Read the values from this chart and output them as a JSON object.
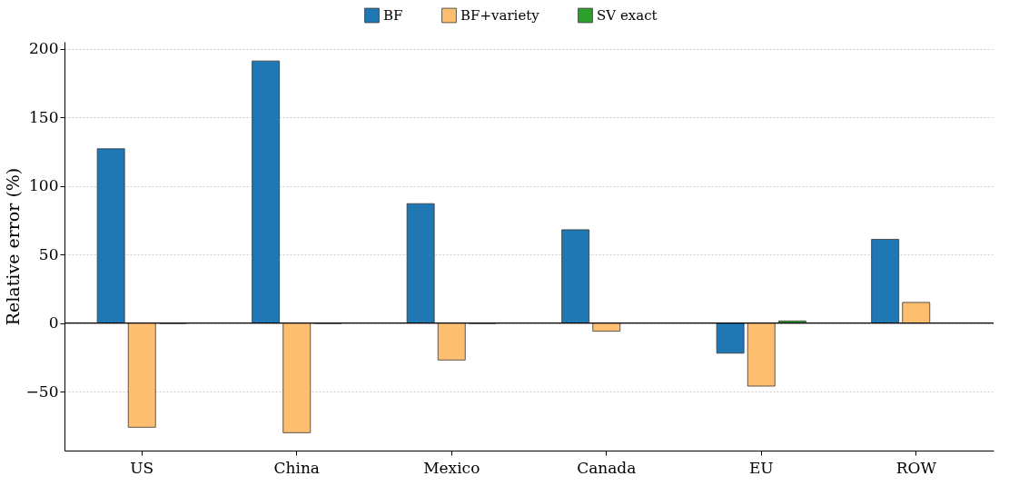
{
  "chart_data": {
    "type": "bar",
    "ylabel": "Relative error (%)",
    "categories": [
      "US",
      "China",
      "Mexico",
      "Canada",
      "EU",
      "ROW"
    ],
    "series": [
      {
        "name": "BF",
        "color": "#1f77b4",
        "values": [
          127,
          191,
          87,
          68,
          -22,
          61
        ]
      },
      {
        "name": "BF+variety",
        "color": "#fdbf6f",
        "values": [
          -76,
          -80,
          -27,
          -6,
          -46,
          15
        ]
      },
      {
        "name": "SV exact",
        "color": "#2ca02c",
        "values": [
          -0.3,
          -0.3,
          -0.3,
          null,
          1.5,
          null
        ]
      }
    ],
    "ylim": [
      -93,
      205
    ],
    "yticks": [
      -50,
      0,
      50,
      100,
      150,
      200
    ],
    "grid": "y",
    "legend": "top",
    "ref_lines": [
      {
        "axis": "y",
        "value": 0,
        "color": "#000000"
      }
    ]
  }
}
